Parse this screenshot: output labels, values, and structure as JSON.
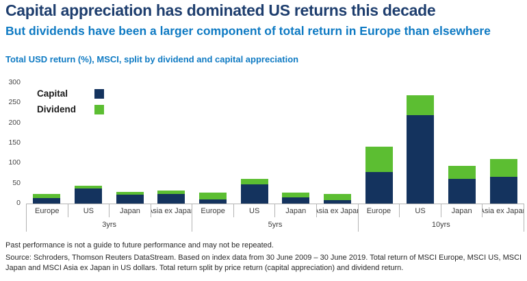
{
  "header": {
    "title": "Capital appreciation has dominated US returns this decade",
    "subtitle": "But dividends have been a larger component of total return in Europe than elsewhere"
  },
  "chart": {
    "heading": "Total USD return (%), MSCI, split by dividend and capital appreciation"
  },
  "chart_data": {
    "type": "bar",
    "stacked": true,
    "title": "Total USD return (%), MSCI, split by dividend and capital appreciation",
    "groups": [
      "3yrs",
      "5yrs",
      "10yrs"
    ],
    "categories": [
      "Europe",
      "US",
      "Japan",
      "Asia ex Japan"
    ],
    "series": [
      {
        "name": "Capital",
        "color": "#14335e",
        "values": [
          [
            14,
            38,
            22,
            24
          ],
          [
            10,
            48,
            15,
            9
          ],
          [
            79,
            220,
            61,
            66
          ]
        ]
      },
      {
        "name": "Dividend",
        "color": "#5cbe32",
        "values": [
          [
            10,
            6,
            7,
            9
          ],
          [
            17,
            13,
            12,
            15
          ],
          [
            63,
            50,
            33,
            44
          ]
        ]
      }
    ],
    "ylim": [
      0,
      300
    ],
    "y_ticks": [
      0,
      50,
      100,
      150,
      200,
      250,
      300
    ],
    "grid": false,
    "legend_position": "inside-top-left",
    "legend_entries": [
      "Capital",
      "Dividend"
    ]
  },
  "footer": {
    "disclaimer": "Past performance is not a guide to future performance and may not be repeated.",
    "source": "Source: Schroders, Thomson Reuters DataStream. Based on index data from 30 June 2009 – 30 June 2019. Total return of MSCI Europe, MSCI US, MSCI Japan and MSCI Asia ex Japan in US dollars. Total return split by price return (capital appreciation) and dividend return."
  },
  "colors": {
    "capital": "#14335e",
    "dividend": "#5cbe32",
    "title": "#1e3e6e",
    "subtitle": "#0e7ac3"
  }
}
